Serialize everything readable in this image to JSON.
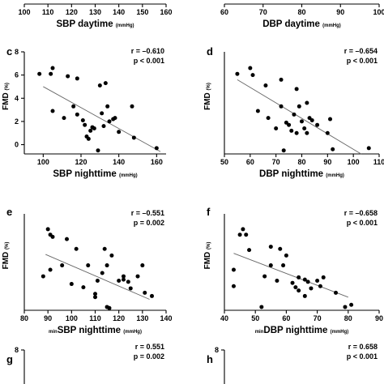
{
  "chart_data": [
    {
      "id": "a",
      "type": "scatter",
      "label": "",
      "xlabel": "SBP daytime",
      "xunit": "(mmHg)",
      "ylabel": "",
      "yunit": "",
      "xticks": [
        100,
        110,
        120,
        130,
        140,
        150,
        160
      ],
      "xlim": [
        100,
        160
      ],
      "r": "",
      "p": "",
      "points": [],
      "fit": []
    },
    {
      "id": "b",
      "type": "scatter",
      "label": "",
      "xlabel": "DBP daytime",
      "xunit": "(mmHg)",
      "ylabel": "",
      "yunit": "",
      "xticks": [
        60,
        70,
        80,
        90,
        100
      ],
      "xlim": [
        60,
        100
      ],
      "r": "",
      "p": "",
      "points": [],
      "fit": []
    },
    {
      "id": "c",
      "type": "scatter",
      "label": "c",
      "xlabel": "SBP nighttime",
      "xunit": "(mmHg)",
      "ylabel": "FMD",
      "yunit": "(%)",
      "xticks": [
        100,
        120,
        140,
        160
      ],
      "yticks": [
        0,
        2,
        4,
        6,
        8
      ],
      "xlim": [
        90,
        165
      ],
      "ylim": [
        -0.8,
        8
      ],
      "r": "r = –0.610",
      "p": "p < 0.001",
      "points": [
        [
          98,
          6.1
        ],
        [
          104,
          6.1
        ],
        [
          105,
          6.6
        ],
        [
          105,
          2.9
        ],
        [
          111,
          2.3
        ],
        [
          113,
          5.9
        ],
        [
          116,
          3.3
        ],
        [
          118,
          2.6
        ],
        [
          118,
          5.7
        ],
        [
          121,
          2.1
        ],
        [
          122,
          1.7
        ],
        [
          123,
          0.7
        ],
        [
          124,
          0.5
        ],
        [
          125,
          1.2
        ],
        [
          126,
          1.5
        ],
        [
          127,
          1.4
        ],
        [
          129,
          -0.5
        ],
        [
          130,
          5.1
        ],
        [
          131,
          2.7
        ],
        [
          132,
          1.6
        ],
        [
          133,
          5.3
        ],
        [
          134,
          3.3
        ],
        [
          135,
          2.0
        ],
        [
          137,
          2.2
        ],
        [
          138,
          2.3
        ],
        [
          140,
          1.1
        ],
        [
          147,
          3.3
        ],
        [
          148,
          0.6
        ],
        [
          160,
          -0.3
        ]
      ],
      "fit": [
        [
          100,
          5.0
        ],
        [
          162,
          -0.6
        ]
      ]
    },
    {
      "id": "d",
      "type": "scatter",
      "label": "d",
      "xlabel": "DBP nighttime",
      "xunit": "(mmHg)",
      "ylabel": "FMD",
      "yunit": "(%)",
      "xticks": [
        50,
        60,
        70,
        80,
        90,
        100,
        110
      ],
      "xlim": [
        50,
        110
      ],
      "ylim": [
        -0.8,
        8
      ],
      "r": "r = –0.654",
      "p": "p < 0.001",
      "points": [
        [
          55,
          6.1
        ],
        [
          60,
          6.6
        ],
        [
          61,
          6.0
        ],
        [
          63,
          2.9
        ],
        [
          66,
          5.1
        ],
        [
          67,
          2.3
        ],
        [
          70,
          1.4
        ],
        [
          72,
          5.6
        ],
        [
          72,
          3.3
        ],
        [
          73,
          -0.5
        ],
        [
          74,
          1.9
        ],
        [
          75,
          1.7
        ],
        [
          76,
          1.2
        ],
        [
          77,
          2.6
        ],
        [
          78,
          4.8
        ],
        [
          78,
          1.0
        ],
        [
          79,
          3.3
        ],
        [
          80,
          2.0
        ],
        [
          81,
          1.4
        ],
        [
          82,
          1.0
        ],
        [
          82,
          3.6
        ],
        [
          83,
          2.3
        ],
        [
          84,
          2.1
        ],
        [
          86,
          1.7
        ],
        [
          90,
          1.0
        ],
        [
          91,
          2.2
        ],
        [
          92,
          -0.4
        ],
        [
          106,
          -0.3
        ]
      ],
      "fit": [
        [
          55,
          5.6
        ],
        [
          103,
          -0.8
        ]
      ]
    },
    {
      "id": "e",
      "type": "scatter",
      "label": "e",
      "xlabel": "SBP nighttime",
      "xprefix": "min",
      "xunit": "(mmHg)",
      "ylabel": "FMD",
      "yunit": "(%)",
      "xticks": [
        80,
        90,
        100,
        110,
        120,
        130,
        140
      ],
      "xlim": [
        80,
        140
      ],
      "ylim": [
        -0.8,
        8
      ],
      "r": "r = –0.551",
      "p": "p = 0.002",
      "points": [
        [
          88,
          2.3
        ],
        [
          90,
          6.6
        ],
        [
          91,
          6.1
        ],
        [
          91,
          2.9
        ],
        [
          92,
          5.9
        ],
        [
          96,
          3.3
        ],
        [
          98,
          5.7
        ],
        [
          100,
          1.6
        ],
        [
          102,
          4.8
        ],
        [
          105,
          1.3
        ],
        [
          107,
          3.3
        ],
        [
          110,
          0.7
        ],
        [
          110,
          0.4
        ],
        [
          111,
          1.9
        ],
        [
          113,
          2.6
        ],
        [
          114,
          4.8
        ],
        [
          115,
          3.3
        ],
        [
          115,
          -0.5
        ],
        [
          116,
          -0.6
        ],
        [
          117,
          4.2
        ],
        [
          120,
          1.9
        ],
        [
          122,
          2.3
        ],
        [
          122,
          2.0
        ],
        [
          124,
          1.8
        ],
        [
          125,
          1.2
        ],
        [
          128,
          2.3
        ],
        [
          130,
          3.3
        ],
        [
          131,
          0.8
        ],
        [
          134,
          0.5
        ]
      ],
      "fit": [
        [
          89,
          4.3
        ],
        [
          133,
          0.2
        ]
      ]
    },
    {
      "id": "f",
      "type": "scatter",
      "label": "f",
      "xlabel": "DBP nighttime",
      "xprefix": "min",
      "xunit": "(mmHg)",
      "ylabel": "FMD",
      "yunit": "(%)",
      "xticks": [
        40,
        50,
        60,
        70,
        80,
        90
      ],
      "xlim": [
        40,
        90
      ],
      "ylim": [
        -0.8,
        8
      ],
      "r": "r = –0.658",
      "p": "p < 0.001",
      "points": [
        [
          43,
          2.9
        ],
        [
          43,
          1.4
        ],
        [
          45,
          6.1
        ],
        [
          46,
          6.6
        ],
        [
          47,
          6.1
        ],
        [
          48,
          4.7
        ],
        [
          52,
          -0.5
        ],
        [
          53,
          2.3
        ],
        [
          55,
          3.3
        ],
        [
          55,
          5.0
        ],
        [
          57,
          1.9
        ],
        [
          58,
          4.8
        ],
        [
          59,
          3.3
        ],
        [
          60,
          4.2
        ],
        [
          62,
          1.7
        ],
        [
          63,
          1.3
        ],
        [
          64,
          2.2
        ],
        [
          64,
          1.0
        ],
        [
          66,
          2.0
        ],
        [
          66,
          0.5
        ],
        [
          67,
          1.8
        ],
        [
          68,
          1.2
        ],
        [
          70,
          1.9
        ],
        [
          71,
          1.4
        ],
        [
          72,
          2.2
        ],
        [
          76,
          0.8
        ],
        [
          79,
          -0.5
        ],
        [
          81,
          -0.3
        ]
      ],
      "fit": [
        [
          43,
          4.4
        ],
        [
          80,
          0.4
        ]
      ]
    },
    {
      "id": "g",
      "type": "scatter",
      "label": "g",
      "xlabel": "",
      "xunit": "",
      "ylabel": "",
      "yunit": "",
      "yticks": [
        8
      ],
      "ylim": [
        -0.8,
        8
      ],
      "r": "r = 0.551",
      "p": "p = 0.002",
      "points": [],
      "fit": []
    },
    {
      "id": "h",
      "type": "scatter",
      "label": "h",
      "xlabel": "",
      "xunit": "",
      "ylabel": "",
      "yunit": "",
      "yticks": [
        8
      ],
      "ylim": [
        -0.8,
        8
      ],
      "r": "r = 0.658",
      "p": "p < 0.001",
      "points": [],
      "fit": []
    }
  ]
}
